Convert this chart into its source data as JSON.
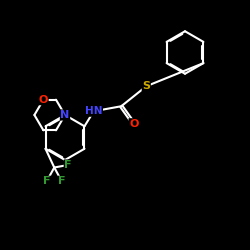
{
  "bg_color": "#000000",
  "bond_color": "#ffffff",
  "bond_width": 1.5,
  "atom_colors": {
    "S": "#ccaa00",
    "O": "#ff2200",
    "N": "#4444ff",
    "F": "#339933",
    "C": "#ffffff"
  },
  "figsize": [
    2.5,
    2.5
  ],
  "dpi": 100
}
